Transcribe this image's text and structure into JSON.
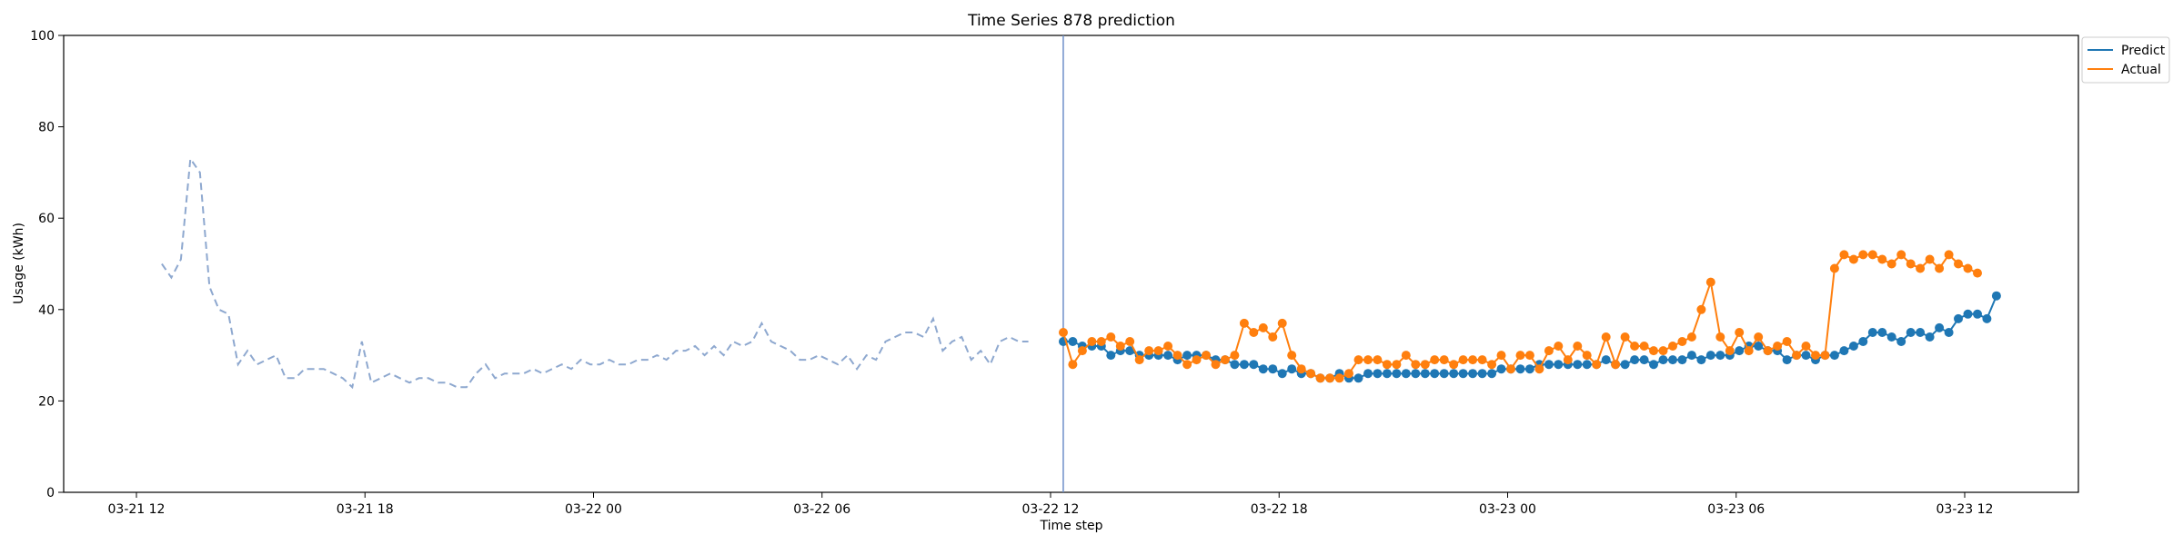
{
  "chart_data": {
    "type": "line",
    "title": "Time Series 878 prediction",
    "xlabel": "Time step",
    "ylabel": "Usage (kWh)",
    "ylim": [
      0,
      100
    ],
    "y_ticks": [
      "0",
      "20",
      "40",
      "60",
      "80",
      "100"
    ],
    "x_ticks": [
      "03-21 12",
      "03-21 18",
      "03-22 00",
      "03-22 06",
      "03-22 12",
      "03-22 18",
      "03-23 00",
      "03-23 06",
      "03-23 12"
    ],
    "x_start": "2024-03-21 12:00",
    "x_end": "2024-03-23 12:00",
    "legend_position": "upper right (outside)",
    "prediction_start": "2024-03-22 12:20",
    "series": [
      {
        "name": "",
        "style": "dashed",
        "color": "#8ea8cf",
        "start": "2024-03-21 12:40",
        "step_minutes": 15,
        "values": [
          50,
          47,
          51,
          73,
          70,
          45,
          40,
          39,
          28,
          31,
          28,
          29,
          30,
          25,
          25,
          27,
          27,
          27,
          26,
          25,
          23,
          33,
          24,
          25,
          26,
          25,
          24,
          25,
          25,
          24,
          24,
          23,
          23,
          26,
          28,
          25,
          26,
          26,
          26,
          27,
          26,
          27,
          28,
          27,
          29,
          28,
          28,
          29,
          28,
          28,
          29,
          29,
          30,
          29,
          31,
          31,
          32,
          30,
          32,
          30,
          33,
          32,
          33,
          37,
          33,
          32,
          31,
          29,
          29,
          30,
          29,
          28,
          30,
          27,
          30,
          29,
          33,
          34,
          35,
          35,
          34,
          38,
          31,
          33,
          34,
          29,
          31,
          28,
          33,
          34,
          33,
          33
        ]
      },
      {
        "name": "Predict",
        "style": "line-markers",
        "color": "#1f77b4",
        "start": "2024-03-22 12:20",
        "step_minutes": 15,
        "values": [
          33,
          33,
          32,
          32,
          32,
          30,
          31,
          31,
          30,
          30,
          30,
          30,
          29,
          30,
          30,
          30,
          29,
          29,
          28,
          28,
          28,
          27,
          27,
          26,
          27,
          26,
          26,
          25,
          25,
          26,
          25,
          25,
          26,
          26,
          26,
          26,
          26,
          26,
          26,
          26,
          26,
          26,
          26,
          26,
          26,
          26,
          27,
          27,
          27,
          27,
          28,
          28,
          28,
          28,
          28,
          28,
          28,
          29,
          28,
          28,
          29,
          29,
          28,
          29,
          29,
          29,
          30,
          29,
          30,
          30,
          30,
          31,
          32,
          32,
          31,
          31,
          29,
          30,
          30,
          29,
          30,
          30,
          31,
          32,
          33,
          35,
          35,
          34,
          33,
          35,
          35,
          34,
          36,
          35,
          38,
          39,
          39,
          38,
          43
        ]
      },
      {
        "name": "Actual",
        "style": "line-markers",
        "color": "#ff7f0e",
        "start": "2024-03-22 12:20",
        "step_minutes": 15,
        "values": [
          35,
          28,
          31,
          33,
          33,
          34,
          32,
          33,
          29,
          31,
          31,
          32,
          30,
          28,
          29,
          30,
          28,
          29,
          30,
          37,
          35,
          36,
          34,
          37,
          30,
          27,
          26,
          25,
          25,
          25,
          26,
          29,
          29,
          29,
          28,
          28,
          30,
          28,
          28,
          29,
          29,
          28,
          29,
          29,
          29,
          28,
          30,
          27,
          30,
          30,
          27,
          31,
          32,
          29,
          32,
          30,
          28,
          34,
          28,
          34,
          32,
          32,
          31,
          31,
          32,
          33,
          34,
          40,
          46,
          34,
          31,
          35,
          31,
          34,
          31,
          32,
          33,
          30,
          32,
          30,
          30,
          49,
          52,
          51,
          52,
          52,
          51,
          50,
          52,
          50,
          49,
          51,
          49,
          52,
          50,
          49,
          48
        ]
      }
    ]
  }
}
